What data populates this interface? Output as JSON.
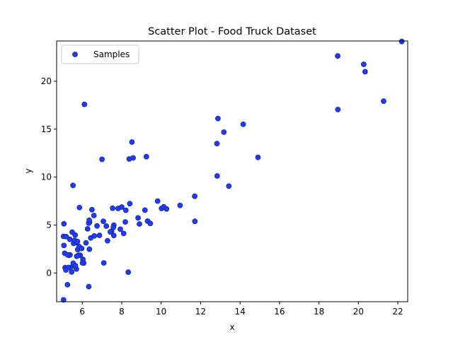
{
  "chart_data": {
    "type": "scatter",
    "title": "Scatter Plot - Food Truck Dataset",
    "xlabel": "x",
    "ylabel": "y",
    "xlim": [
      4.7,
      22.5
    ],
    "ylim": [
      -3,
      24.2
    ],
    "xticks": [
      6,
      8,
      10,
      12,
      14,
      16,
      18,
      20,
      22
    ],
    "yticks": [
      0,
      5,
      10,
      15,
      20
    ],
    "grid": false,
    "legend_position": "top-left",
    "series": [
      {
        "name": "Samples",
        "color": "#1f3dff",
        "edge_color": "#1f2a99",
        "points": [
          [
            6.11,
            17.59
          ],
          [
            5.53,
            9.13
          ],
          [
            8.52,
            13.66
          ],
          [
            7.0,
            11.85
          ],
          [
            5.86,
            6.82
          ],
          [
            8.38,
            11.89
          ],
          [
            7.48,
            4.35
          ],
          [
            8.58,
            12.0
          ],
          [
            6.49,
            6.6
          ],
          [
            5.05,
            3.82
          ],
          [
            5.71,
            3.25
          ],
          [
            14.16,
            15.51
          ],
          [
            5.73,
            3.16
          ],
          [
            8.41,
            7.23
          ],
          [
            5.64,
            0.72
          ],
          [
            5.37,
            3.51
          ],
          [
            6.37,
            5.3
          ],
          [
            5.13,
            0.56
          ],
          [
            6.43,
            3.65
          ],
          [
            7.07,
            5.39
          ],
          [
            6.19,
            3.14
          ],
          [
            20.27,
            21.77
          ],
          [
            5.49,
            4.26
          ],
          [
            6.33,
            5.19
          ],
          [
            5.56,
            3.08
          ],
          [
            18.95,
            22.64
          ],
          [
            12.83,
            13.5
          ],
          [
            10.96,
            7.05
          ],
          [
            13.18,
            14.69
          ],
          [
            22.2,
            24.15
          ],
          [
            5.25,
            -1.22
          ],
          [
            6.59,
            5.99
          ],
          [
            9.25,
            12.13
          ],
          [
            5.89,
            1.85
          ],
          [
            8.21,
            6.54
          ],
          [
            7.93,
            4.56
          ],
          [
            8.1,
            4.12
          ],
          [
            5.61,
            3.39
          ],
          [
            12.84,
            10.12
          ],
          [
            6.35,
            5.5
          ],
          [
            5.41,
            0.56
          ],
          [
            6.87,
            3.92
          ],
          [
            11.71,
            5.39
          ],
          [
            5.77,
            2.44
          ],
          [
            7.82,
            6.73
          ],
          [
            7.09,
            1.05
          ],
          [
            5.07,
            5.13
          ],
          [
            5.8,
            1.84
          ],
          [
            11.7,
            8.0
          ],
          [
            5.54,
            1.02
          ],
          [
            7.54,
            6.75
          ],
          [
            5.31,
            1.84
          ],
          [
            7.42,
            4.29
          ],
          [
            7.6,
            4.99
          ],
          [
            6.03,
            1.42
          ],
          [
            6.33,
            -1.42
          ],
          [
            6.36,
            2.48
          ],
          [
            6.27,
            4.6
          ],
          [
            5.64,
            3.96
          ],
          [
            9.31,
            5.41
          ],
          [
            9.45,
            5.17
          ],
          [
            8.83,
            5.74
          ],
          [
            5.18,
            3.79
          ],
          [
            21.28,
            17.93
          ],
          [
            14.91,
            12.05
          ],
          [
            18.96,
            17.05
          ],
          [
            7.22,
            4.89
          ],
          [
            5.3,
            0.57
          ],
          [
            6.61,
            3.86
          ],
          [
            9.18,
            6.55
          ],
          [
            7.58,
            4.76
          ],
          [
            5.7,
            0.41
          ],
          [
            5.07,
            2.87
          ],
          [
            5.65,
            0.76
          ],
          [
            5.38,
            1.89
          ],
          [
            6.07,
            1.03
          ],
          [
            5.17,
            0.31
          ],
          [
            5.72,
            1.73
          ],
          [
            10.27,
            6.68
          ],
          [
            5.11,
            2.06
          ],
          [
            5.75,
            3.29
          ],
          [
            5.84,
            2.76
          ],
          [
            8.33,
            0.08
          ],
          [
            5.26,
            1.89
          ],
          [
            6.01,
            1.05
          ],
          [
            5.97,
            2.56
          ],
          [
            10.02,
            6.73
          ],
          [
            13.43,
            9.06
          ],
          [
            10.13,
            6.91
          ],
          [
            20.34,
            20.99
          ],
          [
            5.05,
            -2.81
          ],
          [
            12.88,
            16.11
          ],
          [
            6.75,
            4.9
          ],
          [
            9.82,
            7.5
          ],
          [
            8.0,
            6.88
          ],
          [
            7.6,
            3.91
          ],
          [
            8.18,
            5.32
          ],
          [
            8.9,
            5.11
          ],
          [
            7.28,
            3.36
          ],
          [
            5.46,
            0.1
          ]
        ]
      }
    ]
  }
}
